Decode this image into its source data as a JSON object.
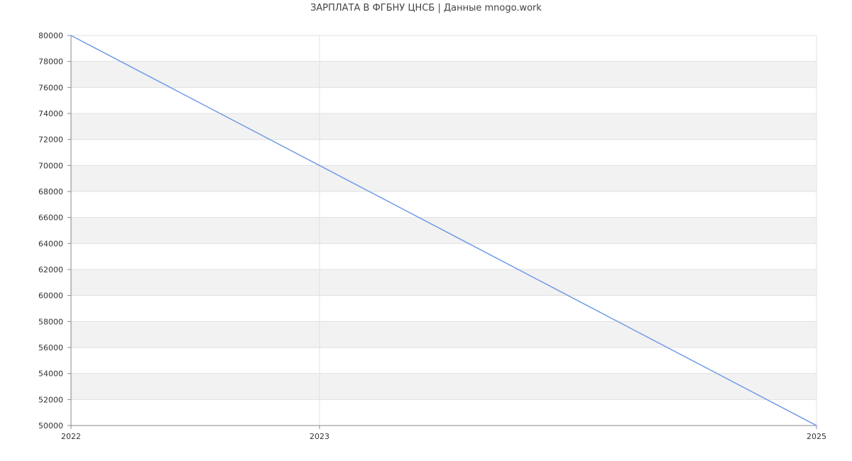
{
  "chart_data": {
    "type": "line",
    "title": "ЗАРПЛАТА В ФГБНУ ЦНСБ | Данные mnogo.work",
    "xlabel": "",
    "ylabel": "",
    "categories": [
      "2022",
      "2023",
      "2025"
    ],
    "x": [
      2022,
      2023,
      2025
    ],
    "series": [
      {
        "values": [
          80000,
          70000,
          50000
        ]
      }
    ],
    "ylim": [
      50000,
      80000
    ],
    "yticks": [
      50000,
      52000,
      54000,
      56000,
      58000,
      60000,
      62000,
      64000,
      66000,
      68000,
      70000,
      72000,
      74000,
      76000,
      78000,
      80000
    ],
    "grid": true,
    "legend": "none",
    "colors": {
      "line": "#6f9be8",
      "band": "#f2f2f2",
      "grid": "#e0e0e0",
      "axis": "#888888"
    }
  }
}
